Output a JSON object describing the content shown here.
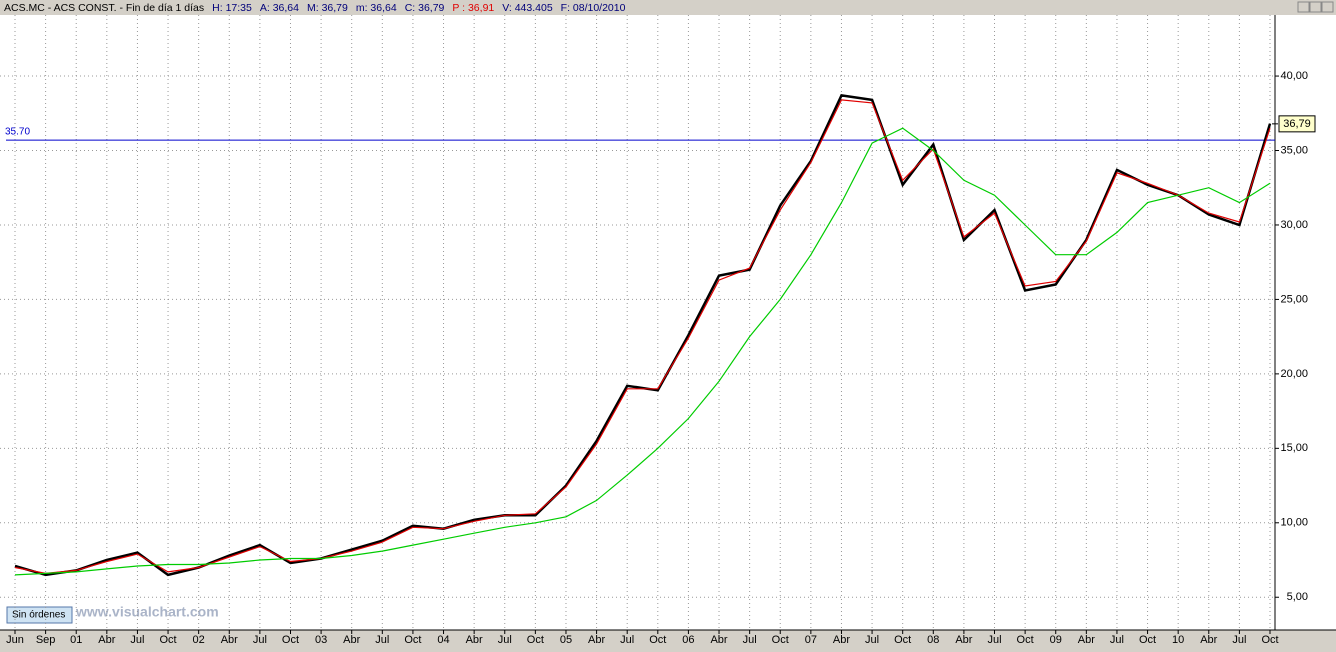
{
  "header": {
    "title": "ACS.MC - ACS CONST. - Fin de día 1 días",
    "fields": [
      "H: 17:35",
      "A: 36,64",
      "M: 36,79",
      "m: 36,64",
      "C: 36,79",
      "P : 36,91",
      "V: 443.405",
      "F: 08/10/2010"
    ]
  },
  "footer": {
    "button": "Sin órdenes",
    "watermark": "www.visualchart.com"
  },
  "chart_data": {
    "type": "line",
    "categories": [
      "Jun",
      "Sep",
      "01",
      "Abr",
      "Jul",
      "Oct",
      "02",
      "Abr",
      "Jul",
      "Oct",
      "03",
      "Abr",
      "Jul",
      "Oct",
      "04",
      "Abr",
      "Jul",
      "Oct",
      "05",
      "Abr",
      "Jul",
      "Oct",
      "06",
      "Abr",
      "Jul",
      "Oct",
      "07",
      "Abr",
      "Jul",
      "Oct",
      "08",
      "Abr",
      "Jul",
      "Oct",
      "09",
      "Abr",
      "Jul",
      "Oct",
      "10",
      "Abr",
      "Jul",
      "Oct"
    ],
    "series": [
      {
        "color": "#000000",
        "values": [
          7.1,
          6.5,
          6.8,
          7.5,
          8.0,
          6.5,
          7.0,
          7.8,
          8.5,
          7.3,
          7.6,
          8.2,
          8.8,
          9.8,
          9.6,
          10.2,
          10.5,
          10.5,
          12.5,
          15.5,
          19.2,
          18.9,
          22.6,
          26.6,
          27.0,
          31.3,
          34.3,
          38.7,
          38.4,
          32.7,
          35.4,
          29.0,
          31.0,
          25.6,
          26.0,
          29.0,
          33.7,
          32.7,
          32.0,
          30.7,
          30.0,
          36.8
        ]
      },
      {
        "color": "#e00000",
        "values": [
          7.0,
          6.6,
          6.8,
          7.4,
          7.9,
          6.7,
          7.0,
          7.7,
          8.4,
          7.4,
          7.6,
          8.1,
          8.7,
          9.7,
          9.6,
          10.1,
          10.5,
          10.6,
          12.4,
          15.3,
          19.0,
          19.0,
          22.4,
          26.3,
          27.1,
          31.0,
          34.2,
          38.4,
          38.2,
          33.0,
          35.1,
          29.2,
          30.8,
          25.9,
          26.2,
          28.9,
          33.5,
          32.8,
          32.0,
          30.8,
          30.2,
          36.5
        ]
      },
      {
        "color": "#00cc00",
        "values": [
          6.5,
          6.6,
          6.7,
          6.9,
          7.1,
          7.2,
          7.2,
          7.3,
          7.5,
          7.6,
          7.6,
          7.8,
          8.1,
          8.5,
          8.9,
          9.3,
          9.7,
          10.0,
          10.4,
          11.5,
          13.2,
          15.0,
          17.0,
          19.5,
          22.5,
          25.0,
          28.0,
          31.5,
          35.5,
          36.5,
          35.0,
          33.0,
          32.0,
          30.0,
          28.0,
          28.0,
          29.5,
          31.5,
          32.0,
          32.5,
          31.5,
          32.8
        ]
      }
    ],
    "ylim": [
      2.8,
      44.1
    ],
    "yticks": [
      {
        "value": 5,
        "label": "5,00"
      },
      {
        "value": 10,
        "label": "10,00"
      },
      {
        "value": 15,
        "label": "15,00"
      },
      {
        "value": 20,
        "label": "20,00"
      },
      {
        "value": 25,
        "label": "25,00"
      },
      {
        "value": 30,
        "label": "30,00"
      },
      {
        "value": 35,
        "label": "35,00"
      },
      {
        "value": 40,
        "label": "40,00"
      }
    ],
    "hline": {
      "value": 35.7,
      "label": "35.70",
      "color": "#0000cc"
    },
    "last_value": 36.79,
    "last_value_label": "36,79",
    "grid": true
  }
}
